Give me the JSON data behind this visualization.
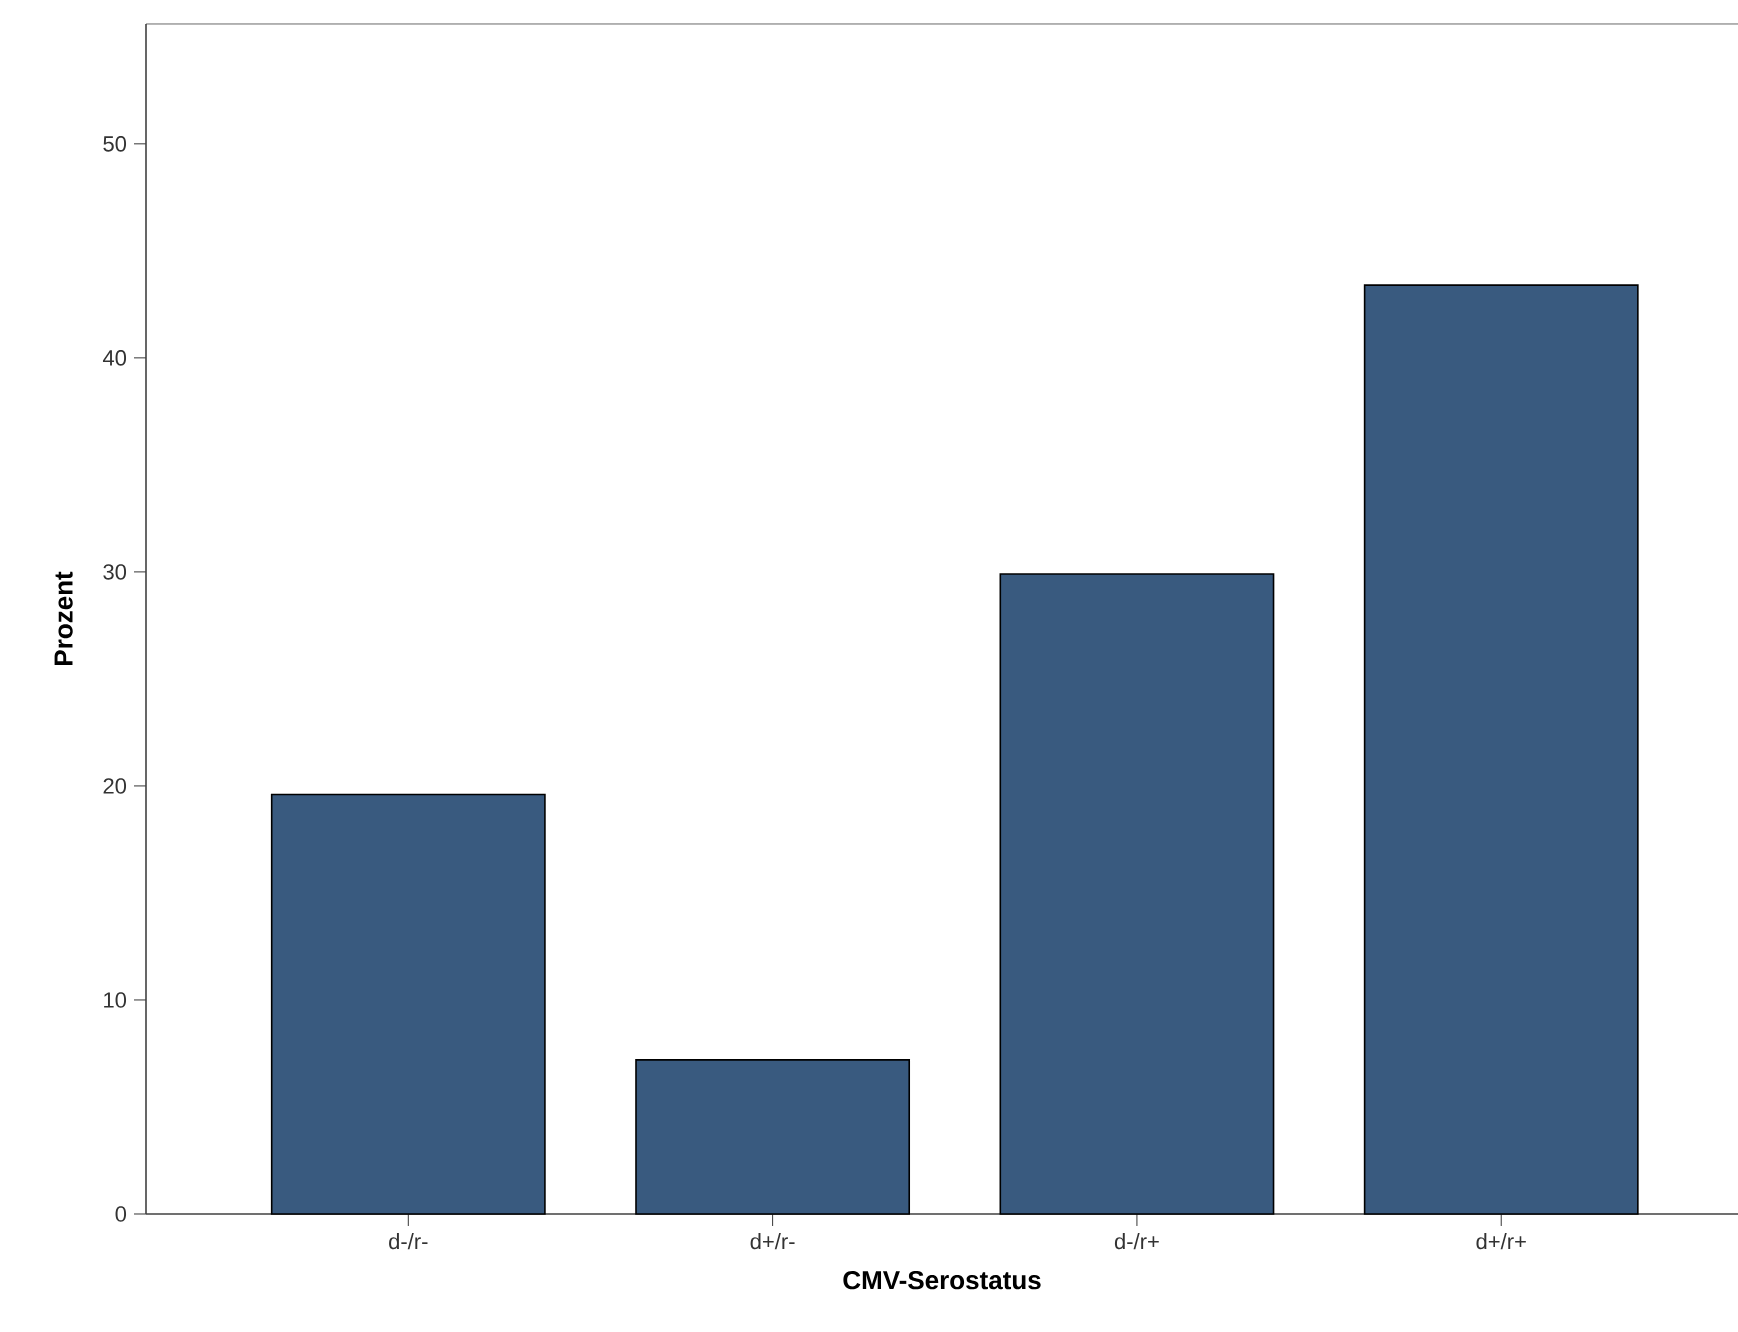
{
  "chart_data": {
    "type": "bar",
    "xlabel": "CMV-Serostatus",
    "ylabel": "Prozent",
    "categories": [
      "d-/r-",
      "d+/r-",
      "d-/r+",
      "d+/r+"
    ],
    "values": [
      19.6,
      7.2,
      29.9,
      43.4
    ],
    "color": "#395a7f",
    "ylim": [
      0,
      55.6
    ],
    "yticks": [
      0,
      10,
      20,
      30,
      40,
      50
    ]
  }
}
